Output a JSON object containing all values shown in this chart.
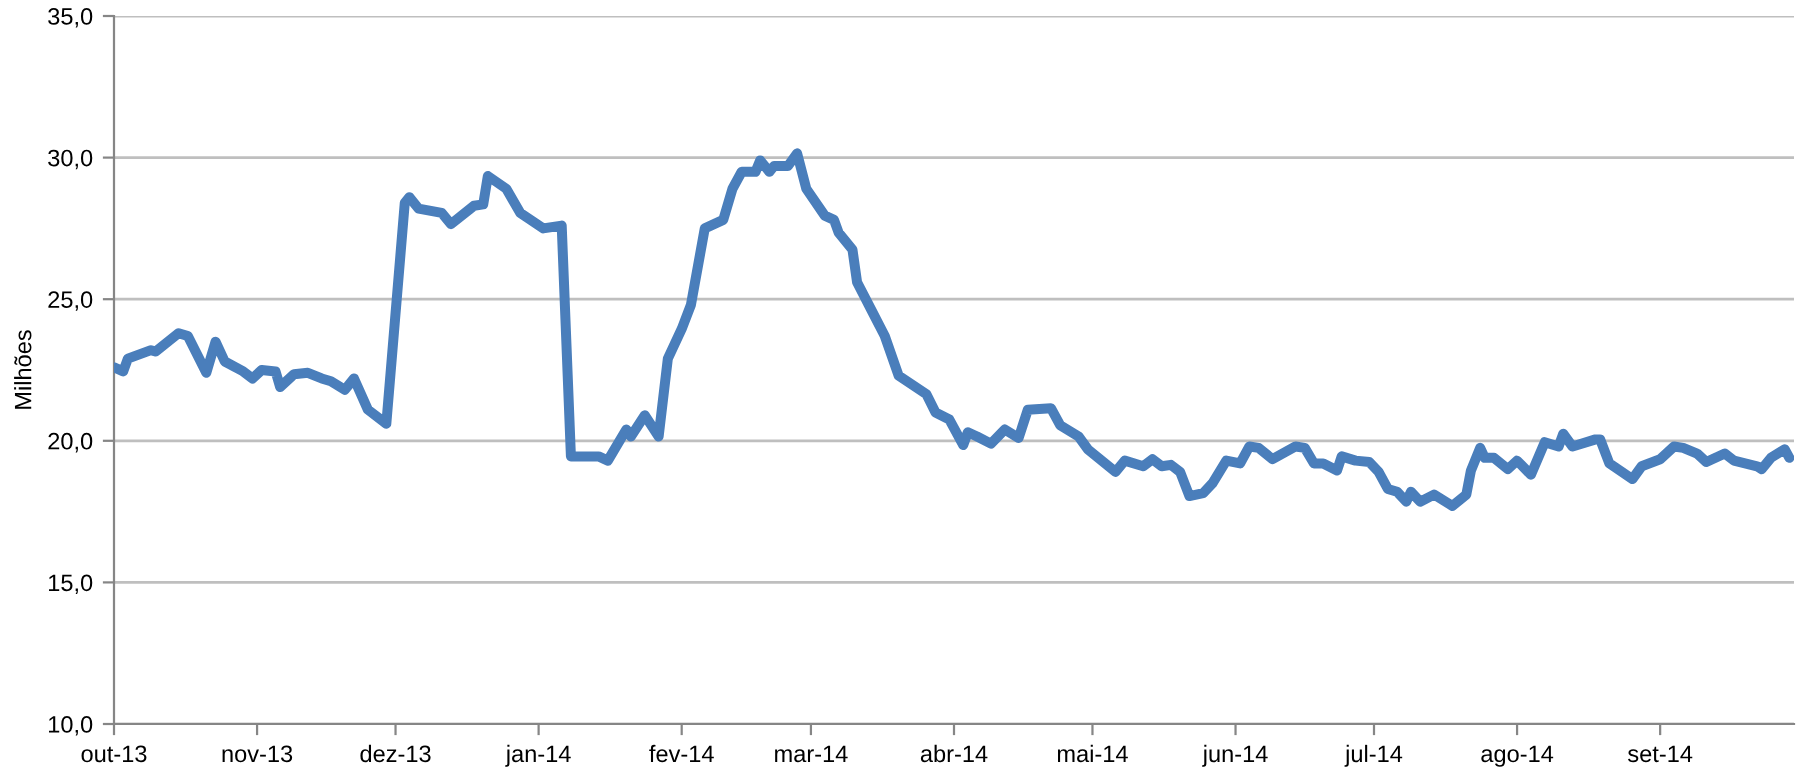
{
  "chart_data": {
    "type": "line",
    "ylabel": "Milhões",
    "x": [
      "2013-10-01",
      "2013-10-03",
      "2013-10-04",
      "2013-10-09",
      "2013-10-10",
      "2013-10-15",
      "2013-10-17",
      "2013-10-21",
      "2013-10-23",
      "2013-10-25",
      "2013-10-29",
      "2013-10-31",
      "2013-11-02",
      "2013-11-05",
      "2013-11-06",
      "2013-11-09",
      "2013-11-12",
      "2013-11-15",
      "2013-11-17",
      "2013-11-20",
      "2013-11-22",
      "2013-11-25",
      "2013-11-29",
      "2013-12-03",
      "2013-12-04",
      "2013-12-06",
      "2013-12-11",
      "2013-12-13",
      "2013-12-18",
      "2013-12-20",
      "2013-12-21",
      "2013-12-25",
      "2013-12-28",
      "2014-01-02",
      "2014-01-06",
      "2014-01-08",
      "2014-01-14",
      "2014-01-16",
      "2014-01-20",
      "2014-01-21",
      "2014-01-24",
      "2014-01-27",
      "2014-01-29",
      "2014-02-01",
      "2014-02-03",
      "2014-02-06",
      "2014-02-10",
      "2014-02-12",
      "2014-02-14",
      "2014-02-17",
      "2014-02-18",
      "2014-02-20",
      "2014-02-21",
      "2014-02-24",
      "2014-02-26",
      "2014-02-28",
      "2014-03-04",
      "2014-03-06",
      "2014-03-07",
      "2014-03-10",
      "2014-03-11",
      "2014-03-14",
      "2014-03-17",
      "2014-03-20",
      "2014-03-26",
      "2014-03-28",
      "2014-03-31",
      "2014-04-03",
      "2014-04-04",
      "2014-04-06",
      "2014-04-09",
      "2014-04-12",
      "2014-04-15",
      "2014-04-17",
      "2014-04-22",
      "2014-04-24",
      "2014-04-28",
      "2014-04-30",
      "2014-05-06",
      "2014-05-08",
      "2014-05-12",
      "2014-05-14",
      "2014-05-16",
      "2014-05-18",
      "2014-05-20",
      "2014-05-22",
      "2014-05-25",
      "2014-05-27",
      "2014-05-30",
      "2014-06-02",
      "2014-06-04",
      "2014-06-06",
      "2014-06-09",
      "2014-06-14",
      "2014-06-16",
      "2014-06-18",
      "2014-06-20",
      "2014-06-23",
      "2014-06-24",
      "2014-06-27",
      "2014-06-30",
      "2014-07-02",
      "2014-07-04",
      "2014-07-06",
      "2014-07-08",
      "2014-07-09",
      "2014-07-11",
      "2014-07-14",
      "2014-07-18",
      "2014-07-21",
      "2014-07-22",
      "2014-07-24",
      "2014-07-25",
      "2014-07-27",
      "2014-07-30",
      "2014-08-01",
      "2014-08-04",
      "2014-08-07",
      "2014-08-10",
      "2014-08-11",
      "2014-08-13",
      "2014-08-18",
      "2014-08-19",
      "2014-08-21",
      "2014-08-26",
      "2014-08-28",
      "2014-09-01",
      "2014-09-04",
      "2014-09-06",
      "2014-09-09",
      "2014-09-11",
      "2014-09-15",
      "2014-09-17",
      "2014-09-22",
      "2014-09-23",
      "2014-09-25",
      "2014-09-28",
      "2014-09-29"
    ],
    "series": [
      {
        "color": "#4a7ebb",
        "values": [
          22.6,
          22.45,
          22.9,
          23.2,
          23.15,
          23.8,
          23.7,
          22.4,
          23.5,
          22.8,
          22.45,
          22.2,
          22.5,
          22.45,
          21.9,
          22.35,
          22.4,
          22.2,
          22.1,
          21.8,
          22.2,
          21.1,
          20.6,
          28.4,
          28.6,
          28.2,
          28.05,
          27.65,
          28.3,
          28.35,
          29.35,
          28.9,
          28.05,
          27.5,
          27.6,
          19.45,
          19.45,
          19.3,
          20.4,
          20.15,
          20.9,
          20.15,
          22.9,
          23.95,
          24.8,
          27.5,
          27.8,
          28.9,
          29.5,
          29.5,
          29.9,
          29.5,
          29.7,
          29.7,
          30.15,
          28.9,
          27.95,
          27.8,
          27.35,
          26.75,
          25.6,
          24.65,
          23.7,
          22.3,
          21.65,
          21.0,
          20.75,
          19.85,
          20.3,
          20.15,
          19.9,
          20.4,
          20.1,
          21.1,
          21.15,
          20.55,
          20.15,
          19.7,
          18.9,
          19.3,
          19.1,
          19.35,
          19.1,
          19.15,
          18.9,
          18.05,
          18.15,
          18.5,
          19.3,
          19.2,
          19.8,
          19.75,
          19.35,
          19.8,
          19.75,
          19.2,
          19.2,
          18.95,
          19.45,
          19.3,
          19.25,
          18.9,
          18.3,
          18.2,
          17.85,
          18.2,
          17.85,
          18.1,
          17.7,
          18.1,
          18.95,
          19.75,
          19.4,
          19.4,
          19.0,
          19.3,
          18.8,
          19.95,
          19.8,
          20.25,
          19.8,
          20.05,
          20.05,
          19.2,
          18.65,
          19.1,
          19.35,
          19.8,
          19.75,
          19.55,
          19.25,
          19.55,
          19.3,
          19.1,
          19.0,
          19.4,
          19.7,
          19.4
        ]
      }
    ],
    "xlim": [
      "2013-10-01",
      "2014-09-30"
    ],
    "xticks": [
      {
        "value": "2013-10-01",
        "label": "out-13"
      },
      {
        "value": "2013-11-01",
        "label": "nov-13"
      },
      {
        "value": "2013-12-01",
        "label": "dez-13"
      },
      {
        "value": "2014-01-01",
        "label": "jan-14"
      },
      {
        "value": "2014-02-01",
        "label": "fev-14"
      },
      {
        "value": "2014-03-01",
        "label": "mar-14"
      },
      {
        "value": "2014-04-01",
        "label": "abr-14"
      },
      {
        "value": "2014-05-01",
        "label": "mai-14"
      },
      {
        "value": "2014-06-01",
        "label": "jun-14"
      },
      {
        "value": "2014-07-01",
        "label": "jul-14"
      },
      {
        "value": "2014-08-01",
        "label": "ago-14"
      },
      {
        "value": "2014-09-01",
        "label": "set-14"
      }
    ],
    "ylim": [
      10,
      35
    ],
    "yticks": [
      {
        "value": 10,
        "label": "10,0"
      },
      {
        "value": 15,
        "label": "15,0"
      },
      {
        "value": 20,
        "label": "20,0"
      },
      {
        "value": 25,
        "label": "25,0"
      },
      {
        "value": 30,
        "label": "30,0"
      },
      {
        "value": 35,
        "label": "35,0"
      }
    ],
    "grid": "y",
    "marker": "none",
    "line_style": "solid"
  }
}
